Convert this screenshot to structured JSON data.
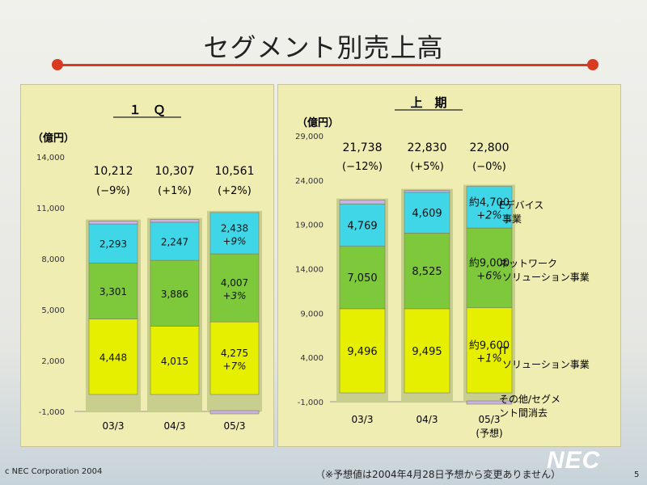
{
  "slide": {
    "title": "セグメント別売上高",
    "footer_left": "c NEC Corporation 2004",
    "footer_note": "（※予想値は2004年4月28日予想から変更ありません）",
    "logo": "NEC",
    "page": "5"
  },
  "colors": {
    "it": "#e6ef00",
    "network": "#7ec83c",
    "device": "#3fd6e8",
    "other": "#c9b3e6",
    "bar_bg": "#c8cf8e",
    "accent": "#d83a22"
  },
  "chart_data": [
    {
      "type": "bar",
      "stacked": true,
      "title": "１　Ｑ",
      "ylabel": "（億円）",
      "ylim": [
        -1000,
        14000
      ],
      "yticks": [
        "14,000",
        "11,000",
        "8,000",
        "5,000",
        "2,000",
        "-1,000"
      ],
      "categories": [
        "03/3",
        "04/3",
        "05/3"
      ],
      "totals": [
        "10,212",
        "10,307",
        "10,561"
      ],
      "total_changes": [
        "(−9%)",
        "(+1%)",
        "(+2%)"
      ],
      "series": [
        {
          "values": [
            4448,
            4015,
            4275
          ],
          "labels": [
            "4,448",
            "4,015",
            "4,275"
          ],
          "changes": [
            "",
            "",
            "+7%"
          ],
          "color_key": "it"
        },
        {
          "values": [
            3301,
            3886,
            4007
          ],
          "labels": [
            "3,301",
            "3,886",
            "4,007"
          ],
          "changes": [
            "",
            "",
            "+3%"
          ],
          "color_key": "network"
        },
        {
          "values": [
            2293,
            2247,
            2438
          ],
          "labels": [
            "2,293",
            "2,247",
            "2,438"
          ],
          "changes": [
            "",
            "",
            "+9%"
          ],
          "color_key": "device"
        },
        {
          "values": [
            170,
            159,
            -159
          ],
          "color_key": "other"
        }
      ]
    },
    {
      "type": "bar",
      "stacked": true,
      "title": "上　期",
      "ylabel": "（億円）",
      "ylim": [
        -1000,
        29000
      ],
      "yticks": [
        "29,000",
        "24,000",
        "19,000",
        "14,000",
        "9,000",
        "4,000",
        "-1,000"
      ],
      "categories": [
        "03/3",
        "04/3",
        "05/3"
      ],
      "category_notes": [
        "",
        "",
        "(予想)"
      ],
      "totals": [
        "21,738",
        "22,830",
        "22,800"
      ],
      "total_changes": [
        "(−12%)",
        "(+5%)",
        "(−0%)"
      ],
      "series": [
        {
          "values": [
            9496,
            9495,
            9600
          ],
          "labels": [
            "9,496",
            "9,495",
            "約9,600"
          ],
          "changes": [
            "",
            "",
            "+1%"
          ],
          "color_key": "it"
        },
        {
          "values": [
            7050,
            8525,
            9000
          ],
          "labels": [
            "7,050",
            "8,525",
            "約9,000"
          ],
          "changes": [
            "",
            "",
            "+6%"
          ],
          "color_key": "network"
        },
        {
          "values": [
            4769,
            4609,
            4700
          ],
          "labels": [
            "4,769",
            "4,609",
            "約4,700"
          ],
          "changes": [
            "",
            "",
            "+2%"
          ],
          "color_key": "device"
        },
        {
          "values": [
            423,
            201,
            -500
          ],
          "color_key": "other"
        }
      ],
      "legend": [
        [
          "Eデバイス",
          "事業"
        ],
        [
          "ネットワーク",
          "ソリューション事業"
        ],
        [
          "IT",
          "ソリューション事業"
        ],
        [
          "その他/セグメ",
          "ント間消去"
        ]
      ]
    }
  ]
}
